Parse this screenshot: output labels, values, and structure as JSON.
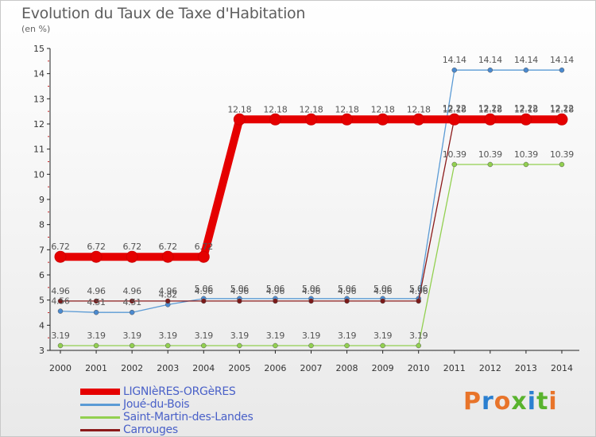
{
  "header": {
    "title": "Evolution du Taux de Taxe d'Habitation",
    "subtitle": "(en %)"
  },
  "brand": {
    "text": "Proxiti",
    "colors": [
      "#e8742a",
      "#2a7fd0",
      "#e8742a",
      "#59b32e",
      "#2a7fd0",
      "#59b32e",
      "#e8742a"
    ]
  },
  "chart_data": {
    "type": "line",
    "title": "Evolution du Taux de Taxe d'Habitation",
    "ylabel": "(en %)",
    "xlabel": "",
    "ylim": [
      3,
      15
    ],
    "yticks": [
      "3",
      "4",
      "5",
      "6",
      "7",
      "8",
      "9",
      "10",
      "11",
      "12",
      "13",
      "14",
      "15"
    ],
    "categories": [
      "2000",
      "2001",
      "2002",
      "2003",
      "2004",
      "2005",
      "2006",
      "2007",
      "2008",
      "2009",
      "2010",
      "2011",
      "2012",
      "2013",
      "2014"
    ],
    "grid": false,
    "legend_position": "bottom-left",
    "series": [
      {
        "name": "LIGNIèRES-ORGèRES",
        "color": "#e50000",
        "values": [
          6.72,
          6.72,
          6.72,
          6.72,
          6.72,
          12.18,
          12.18,
          12.18,
          12.18,
          12.18,
          12.18,
          12.18,
          12.18,
          12.18,
          12.18
        ],
        "labels": [
          "6.72",
          "6.72",
          "6.72",
          "6.72",
          "6.72",
          "12.18",
          "12.18",
          "12.18",
          "12.18",
          "12.18",
          "12.18",
          "12.18",
          "12.18",
          "12.18",
          "12.18"
        ]
      },
      {
        "name": "Joué-du-Bois",
        "color": "#5b9bd5",
        "values": [
          4.56,
          4.51,
          4.51,
          4.82,
          5.06,
          5.06,
          5.06,
          5.06,
          5.06,
          5.06,
          5.06,
          14.14,
          14.14,
          14.14,
          14.14
        ],
        "labels": [
          "4.56",
          "4.51",
          "4.51",
          "4.82",
          "5.06",
          "5.06",
          "5.06",
          "5.06",
          "5.06",
          "5.06",
          "5.06",
          "14.14",
          "14.14",
          "14.14",
          "14.14"
        ]
      },
      {
        "name": "Saint-Martin-des-Landes",
        "color": "#92d050",
        "values": [
          3.19,
          3.19,
          3.19,
          3.19,
          3.19,
          3.19,
          3.19,
          3.19,
          3.19,
          3.19,
          3.19,
          10.39,
          10.39,
          10.39,
          10.39
        ],
        "labels": [
          "3.19",
          "3.19",
          "3.19",
          "3.19",
          "3.19",
          "3.19",
          "3.19",
          "3.19",
          "3.19",
          "3.19",
          "3.19",
          "10.39",
          "10.39",
          "10.39",
          "10.39"
        ]
      },
      {
        "name": "Carrouges",
        "color": "#8b1a1a",
        "values": [
          4.96,
          4.96,
          4.96,
          4.96,
          4.96,
          4.96,
          4.96,
          4.96,
          4.96,
          4.96,
          4.96,
          12.22,
          12.22,
          12.22,
          12.22
        ],
        "labels": [
          "4.96",
          "4.96",
          "4.96",
          "4.96",
          "4.96",
          "4.96",
          "4.96",
          "4.96",
          "4.96",
          "4.96",
          "4.96",
          "12.22",
          "12.22",
          "12.22",
          "12.22"
        ]
      }
    ]
  }
}
